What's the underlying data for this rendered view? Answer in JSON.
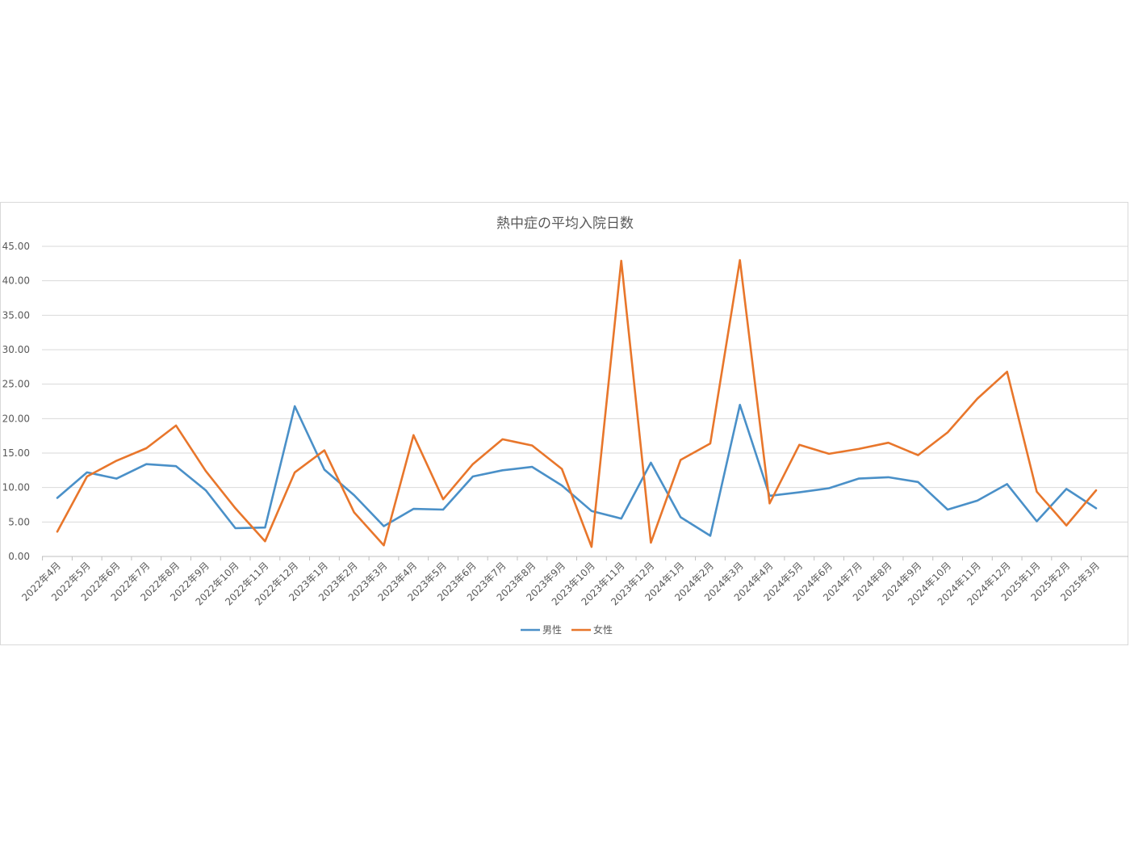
{
  "chart_data": {
    "type": "line",
    "title": "熱中症の平均入院日数",
    "xlabel": "",
    "ylabel": "",
    "ylim": [
      0,
      45
    ],
    "y_ticks": [
      "0.00",
      "5.00",
      "10.00",
      "15.00",
      "20.00",
      "25.00",
      "30.00",
      "35.00",
      "40.00",
      "45.00"
    ],
    "grid": true,
    "legend_position": "bottom",
    "categories": [
      "2022年4月",
      "2022年5月",
      "2022年6月",
      "2022年7月",
      "2022年8月",
      "2022年9月",
      "2022年10月",
      "2022年11月",
      "2022年12月",
      "2023年1月",
      "2023年2月",
      "2023年3月",
      "2023年4月",
      "2023年5月",
      "2023年6月",
      "2023年7月",
      "2023年8月",
      "2023年9月",
      "2023年10月",
      "2023年11月",
      "2023年12月",
      "2024年1月",
      "2024年2月",
      "2024年3月",
      "2024年4月",
      "2024年5月",
      "2024年6月",
      "2024年7月",
      "2024年8月",
      "2024年9月",
      "2024年10月",
      "2024年11月",
      "2024年12月",
      "2025年1月",
      "2025年2月",
      "2025年3月"
    ],
    "series": [
      {
        "name": "男性",
        "color": "#4a90c8",
        "values": [
          8.5,
          12.2,
          11.3,
          13.4,
          13.1,
          9.6,
          4.1,
          4.2,
          21.8,
          12.6,
          8.9,
          4.4,
          6.9,
          6.8,
          11.6,
          12.5,
          13.0,
          10.3,
          6.6,
          5.5,
          13.6,
          5.7,
          3.0,
          22.0,
          8.8,
          9.3,
          9.9,
          11.3,
          11.5,
          10.8,
          6.8,
          8.1,
          10.5,
          5.1,
          9.8,
          7.0
        ]
      },
      {
        "name": "女性",
        "color": "#e8762b",
        "values": [
          3.6,
          11.6,
          13.9,
          15.7,
          19.0,
          12.4,
          7.0,
          2.2,
          12.2,
          15.4,
          6.4,
          1.6,
          17.6,
          8.3,
          13.4,
          17.0,
          16.1,
          12.7,
          1.4,
          42.9,
          2.0,
          14.0,
          16.4,
          43.0,
          7.7,
          16.2,
          14.9,
          15.6,
          16.5,
          14.7,
          18.0,
          22.9,
          26.8,
          9.4,
          4.5,
          9.6
        ]
      }
    ]
  }
}
